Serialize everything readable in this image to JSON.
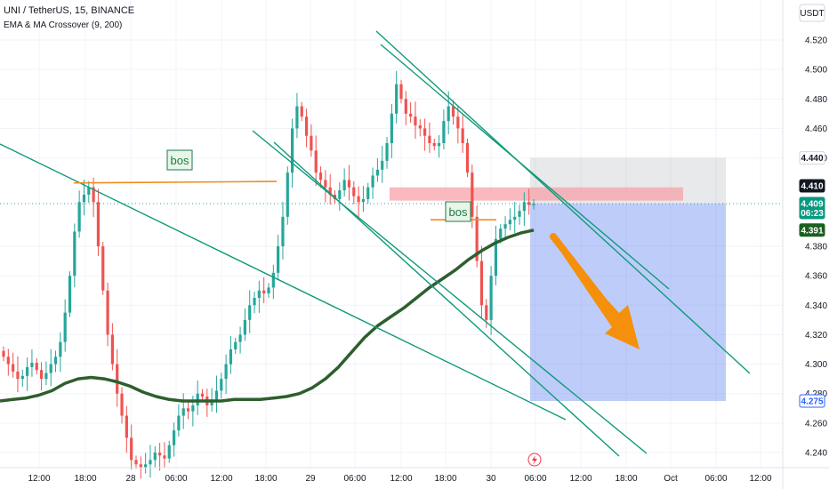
{
  "header": {
    "symbol_title": "UNI / TetherUS, 15, BINANCE",
    "indicator": "EMA & MA Crossover (9, 200)"
  },
  "currency": "USDT",
  "chart_data": {
    "type": "candlestick",
    "ylim": [
      4.235,
      4.538
    ],
    "price_ticks": [
      "4.520",
      "4.500",
      "4.480",
      "4.460",
      "4.440",
      "4.380",
      "4.360",
      "4.340",
      "4.320",
      "4.300",
      "4.280",
      "4.260",
      "4.240"
    ],
    "time_ticks": [
      "12:00",
      "18:00",
      "28",
      "06:00",
      "12:00",
      "18:00",
      "29",
      "06:00",
      "12:00",
      "18:00",
      "30",
      "06:00",
      "12:00",
      "18:00",
      "Oct",
      "06:00",
      "12:00"
    ],
    "price_tags": [
      {
        "value": "4.440",
        "style": "gray"
      },
      {
        "value": "4.410",
        "style": "dark"
      },
      {
        "value": "4.409",
        "style": "green",
        "countdown": "06:23"
      },
      {
        "value": "4.391",
        "style": "darkgreen"
      },
      {
        "value": "4.275",
        "style": "blue"
      }
    ],
    "annotations": [
      "bos",
      "bos"
    ],
    "close_series": [
      4.305,
      4.3,
      4.295,
      4.29,
      4.292,
      4.298,
      4.301,
      4.296,
      4.29,
      4.294,
      4.3,
      4.305,
      4.315,
      4.335,
      4.36,
      4.39,
      4.41,
      4.415,
      4.42,
      4.41,
      4.38,
      4.35,
      4.32,
      4.3,
      4.28,
      4.265,
      4.25,
      4.235,
      4.232,
      4.23,
      4.232,
      4.235,
      4.24,
      4.238,
      4.236,
      4.245,
      4.255,
      4.265,
      4.27,
      4.268,
      4.272,
      4.28,
      4.278,
      4.272,
      4.276,
      4.282,
      4.29,
      4.3,
      4.31,
      4.315,
      4.32,
      4.33,
      4.34,
      4.345,
      4.35,
      4.348,
      4.352,
      4.362,
      4.38,
      4.4,
      4.43,
      4.46,
      4.475,
      4.468,
      4.455,
      4.445,
      4.43,
      4.425,
      4.42,
      4.415,
      4.412,
      4.418,
      4.425,
      4.42,
      4.414,
      4.41,
      4.412,
      4.42,
      4.428,
      4.432,
      4.438,
      4.45,
      4.47,
      4.49,
      4.48,
      4.47,
      4.468,
      4.462,
      4.46,
      4.455,
      4.45,
      4.448,
      4.45,
      4.465,
      4.475,
      4.468,
      4.46,
      4.45,
      4.43,
      4.4,
      4.37,
      4.34,
      4.33,
      4.36,
      4.385,
      4.392,
      4.395,
      4.398,
      4.4,
      4.404,
      4.41,
      4.408,
      4.409
    ],
    "ema_series": [
      4.275,
      4.276,
      4.277,
      4.279,
      4.282,
      4.287,
      4.29,
      4.291,
      4.29,
      4.288,
      4.285,
      4.281,
      4.278,
      4.276,
      4.275,
      4.275,
      4.275,
      4.275,
      4.276,
      4.276,
      4.276,
      4.277,
      4.278,
      4.28,
      4.284,
      4.29,
      4.298,
      4.308,
      4.318,
      4.326,
      4.332,
      4.338,
      4.345,
      4.352,
      4.358,
      4.364,
      4.371,
      4.377,
      4.382,
      4.386,
      4.389,
      4.391
    ]
  }
}
